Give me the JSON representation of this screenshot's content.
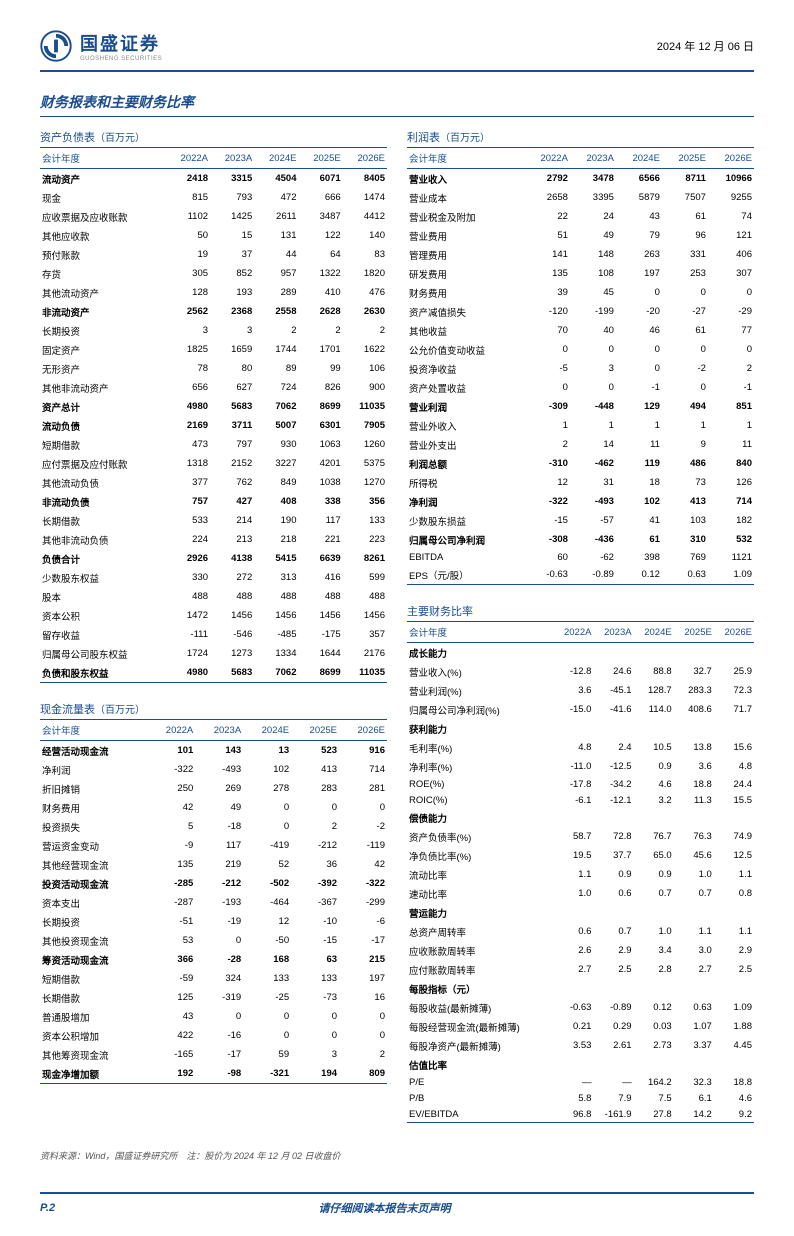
{
  "header": {
    "company_cn": "国盛证券",
    "company_en": "GUOSHENG SECURITIES",
    "date": "2024 年 12 月 06 日",
    "logo_color": "#1a4d8f"
  },
  "section_title": "财务报表和主要财务比率",
  "years": [
    "2022A",
    "2023A",
    "2024E",
    "2025E",
    "2026E"
  ],
  "year_label": "会计年度",
  "balance": {
    "title": "资产负债表",
    "unit": "（百万元）",
    "rows": [
      {
        "label": "流动资产",
        "bold": true,
        "v": [
          "2418",
          "3315",
          "4504",
          "6071",
          "8405"
        ]
      },
      {
        "label": "现金",
        "v": [
          "815",
          "793",
          "472",
          "666",
          "1474"
        ]
      },
      {
        "label": "应收票据及应收账款",
        "v": [
          "1102",
          "1425",
          "2611",
          "3487",
          "4412"
        ]
      },
      {
        "label": "其他应收款",
        "v": [
          "50",
          "15",
          "131",
          "122",
          "140"
        ]
      },
      {
        "label": "预付账款",
        "v": [
          "19",
          "37",
          "44",
          "64",
          "83"
        ]
      },
      {
        "label": "存货",
        "v": [
          "305",
          "852",
          "957",
          "1322",
          "1820"
        ]
      },
      {
        "label": "其他流动资产",
        "v": [
          "128",
          "193",
          "289",
          "410",
          "476"
        ]
      },
      {
        "label": "非流动资产",
        "bold": true,
        "v": [
          "2562",
          "2368",
          "2558",
          "2628",
          "2630"
        ]
      },
      {
        "label": "长期投资",
        "v": [
          "3",
          "3",
          "2",
          "2",
          "2"
        ]
      },
      {
        "label": "固定资产",
        "v": [
          "1825",
          "1659",
          "1744",
          "1701",
          "1622"
        ]
      },
      {
        "label": "无形资产",
        "v": [
          "78",
          "80",
          "89",
          "99",
          "106"
        ]
      },
      {
        "label": "其他非流动资产",
        "v": [
          "656",
          "627",
          "724",
          "826",
          "900"
        ]
      },
      {
        "label": "资产总计",
        "bold": true,
        "v": [
          "4980",
          "5683",
          "7062",
          "8699",
          "11035"
        ]
      },
      {
        "label": "流动负债",
        "bold": true,
        "v": [
          "2169",
          "3711",
          "5007",
          "6301",
          "7905"
        ]
      },
      {
        "label": "短期借款",
        "v": [
          "473",
          "797",
          "930",
          "1063",
          "1260"
        ]
      },
      {
        "label": "应付票据及应付账款",
        "v": [
          "1318",
          "2152",
          "3227",
          "4201",
          "5375"
        ]
      },
      {
        "label": "其他流动负债",
        "v": [
          "377",
          "762",
          "849",
          "1038",
          "1270"
        ]
      },
      {
        "label": "非流动负债",
        "bold": true,
        "v": [
          "757",
          "427",
          "408",
          "338",
          "356"
        ]
      },
      {
        "label": "长期借款",
        "v": [
          "533",
          "214",
          "190",
          "117",
          "133"
        ]
      },
      {
        "label": "其他非流动负债",
        "v": [
          "224",
          "213",
          "218",
          "221",
          "223"
        ]
      },
      {
        "label": "负债合计",
        "bold": true,
        "v": [
          "2926",
          "4138",
          "5415",
          "6639",
          "8261"
        ]
      },
      {
        "label": "少数股东权益",
        "v": [
          "330",
          "272",
          "313",
          "416",
          "599"
        ]
      },
      {
        "label": "股本",
        "v": [
          "488",
          "488",
          "488",
          "488",
          "488"
        ]
      },
      {
        "label": "资本公积",
        "v": [
          "1472",
          "1456",
          "1456",
          "1456",
          "1456"
        ]
      },
      {
        "label": "留存收益",
        "v": [
          "-111",
          "-546",
          "-485",
          "-175",
          "357"
        ]
      },
      {
        "label": "归属母公司股东权益",
        "v": [
          "1724",
          "1273",
          "1334",
          "1644",
          "2176"
        ]
      },
      {
        "label": "负债和股东权益",
        "bold": true,
        "v": [
          "4980",
          "5683",
          "7062",
          "8699",
          "11035"
        ]
      }
    ]
  },
  "cashflow": {
    "title": "现金流量表",
    "unit": "（百万元）",
    "rows": [
      {
        "label": "经营活动现金流",
        "bold": true,
        "v": [
          "101",
          "143",
          "13",
          "523",
          "916"
        ]
      },
      {
        "label": "净利润",
        "v": [
          "-322",
          "-493",
          "102",
          "413",
          "714"
        ]
      },
      {
        "label": "折旧摊销",
        "v": [
          "250",
          "269",
          "278",
          "283",
          "281"
        ]
      },
      {
        "label": "财务费用",
        "v": [
          "42",
          "49",
          "0",
          "0",
          "0"
        ]
      },
      {
        "label": "投资损失",
        "v": [
          "5",
          "-18",
          "0",
          "2",
          "-2"
        ]
      },
      {
        "label": "营运资金变动",
        "v": [
          "-9",
          "117",
          "-419",
          "-212",
          "-119"
        ]
      },
      {
        "label": "其他经营现金流",
        "v": [
          "135",
          "219",
          "52",
          "36",
          "42"
        ]
      },
      {
        "label": "投资活动现金流",
        "bold": true,
        "v": [
          "-285",
          "-212",
          "-502",
          "-392",
          "-322"
        ]
      },
      {
        "label": "资本支出",
        "v": [
          "-287",
          "-193",
          "-464",
          "-367",
          "-299"
        ]
      },
      {
        "label": "长期投资",
        "v": [
          "-51",
          "-19",
          "12",
          "-10",
          "-6"
        ]
      },
      {
        "label": "其他投资现金流",
        "v": [
          "53",
          "0",
          "-50",
          "-15",
          "-17"
        ]
      },
      {
        "label": "筹资活动现金流",
        "bold": true,
        "v": [
          "366",
          "-28",
          "168",
          "63",
          "215"
        ]
      },
      {
        "label": "短期借款",
        "v": [
          "-59",
          "324",
          "133",
          "133",
          "197"
        ]
      },
      {
        "label": "长期借款",
        "v": [
          "125",
          "-319",
          "-25",
          "-73",
          "16"
        ]
      },
      {
        "label": "普通股增加",
        "v": [
          "43",
          "0",
          "0",
          "0",
          "0"
        ]
      },
      {
        "label": "资本公积增加",
        "v": [
          "422",
          "-16",
          "0",
          "0",
          "0"
        ]
      },
      {
        "label": "其他筹资现金流",
        "v": [
          "-165",
          "-17",
          "59",
          "3",
          "2"
        ]
      },
      {
        "label": "现金净增加额",
        "bold": true,
        "v": [
          "192",
          "-98",
          "-321",
          "194",
          "809"
        ]
      }
    ]
  },
  "income": {
    "title": "利润表",
    "unit": "（百万元）",
    "rows": [
      {
        "label": "营业收入",
        "bold": true,
        "v": [
          "2792",
          "3478",
          "6566",
          "8711",
          "10966"
        ]
      },
      {
        "label": "营业成本",
        "v": [
          "2658",
          "3395",
          "5879",
          "7507",
          "9255"
        ]
      },
      {
        "label": "营业税金及附加",
        "v": [
          "22",
          "24",
          "43",
          "61",
          "74"
        ]
      },
      {
        "label": "营业费用",
        "v": [
          "51",
          "49",
          "79",
          "96",
          "121"
        ]
      },
      {
        "label": "管理费用",
        "v": [
          "141",
          "148",
          "263",
          "331",
          "406"
        ]
      },
      {
        "label": "研发费用",
        "v": [
          "135",
          "108",
          "197",
          "253",
          "307"
        ]
      },
      {
        "label": "财务费用",
        "v": [
          "39",
          "45",
          "0",
          "0",
          "0"
        ]
      },
      {
        "label": "资产减值损失",
        "v": [
          "-120",
          "-199",
          "-20",
          "-27",
          "-29"
        ]
      },
      {
        "label": "其他收益",
        "v": [
          "70",
          "40",
          "46",
          "61",
          "77"
        ]
      },
      {
        "label": "公允价值变动收益",
        "v": [
          "0",
          "0",
          "0",
          "0",
          "0"
        ]
      },
      {
        "label": "投资净收益",
        "v": [
          "-5",
          "3",
          "0",
          "-2",
          "2"
        ]
      },
      {
        "label": "资产处置收益",
        "v": [
          "0",
          "0",
          "-1",
          "0",
          "-1"
        ]
      },
      {
        "label": "营业利润",
        "bold": true,
        "v": [
          "-309",
          "-448",
          "129",
          "494",
          "851"
        ]
      },
      {
        "label": "营业外收入",
        "v": [
          "1",
          "1",
          "1",
          "1",
          "1"
        ]
      },
      {
        "label": "营业外支出",
        "v": [
          "2",
          "14",
          "11",
          "9",
          "11"
        ]
      },
      {
        "label": "利润总额",
        "bold": true,
        "v": [
          "-310",
          "-462",
          "119",
          "486",
          "840"
        ]
      },
      {
        "label": "所得税",
        "v": [
          "12",
          "31",
          "18",
          "73",
          "126"
        ]
      },
      {
        "label": "净利润",
        "bold": true,
        "v": [
          "-322",
          "-493",
          "102",
          "413",
          "714"
        ]
      },
      {
        "label": "少数股东损益",
        "v": [
          "-15",
          "-57",
          "41",
          "103",
          "182"
        ]
      },
      {
        "label": "归属母公司净利润",
        "bold": true,
        "v": [
          "-308",
          "-436",
          "61",
          "310",
          "532"
        ]
      },
      {
        "label": "EBITDA",
        "v": [
          "60",
          "-62",
          "398",
          "769",
          "1121"
        ]
      },
      {
        "label": "EPS（元/股）",
        "v": [
          "-0.63",
          "-0.89",
          "0.12",
          "0.63",
          "1.09"
        ]
      }
    ]
  },
  "ratios": {
    "title": "主要财务比率",
    "rows": [
      {
        "label": "成长能力",
        "bold": true,
        "v": [
          "",
          "",
          "",
          "",
          ""
        ]
      },
      {
        "label": "营业收入(%)",
        "v": [
          "-12.8",
          "24.6",
          "88.8",
          "32.7",
          "25.9"
        ]
      },
      {
        "label": "营业利润(%)",
        "v": [
          "3.6",
          "-45.1",
          "128.7",
          "283.3",
          "72.3"
        ]
      },
      {
        "label": "归属母公司净利润(%)",
        "v": [
          "-15.0",
          "-41.6",
          "114.0",
          "408.6",
          "71.7"
        ]
      },
      {
        "label": "获利能力",
        "bold": true,
        "v": [
          "",
          "",
          "",
          "",
          ""
        ]
      },
      {
        "label": "毛利率(%)",
        "v": [
          "4.8",
          "2.4",
          "10.5",
          "13.8",
          "15.6"
        ]
      },
      {
        "label": "净利率(%)",
        "v": [
          "-11.0",
          "-12.5",
          "0.9",
          "3.6",
          "4.8"
        ]
      },
      {
        "label": "ROE(%)",
        "v": [
          "-17.8",
          "-34.2",
          "4.6",
          "18.8",
          "24.4"
        ]
      },
      {
        "label": "ROIC(%)",
        "v": [
          "-6.1",
          "-12.1",
          "3.2",
          "11.3",
          "15.5"
        ]
      },
      {
        "label": "偿债能力",
        "bold": true,
        "v": [
          "",
          "",
          "",
          "",
          ""
        ]
      },
      {
        "label": "资产负债率(%)",
        "v": [
          "58.7",
          "72.8",
          "76.7",
          "76.3",
          "74.9"
        ]
      },
      {
        "label": "净负债比率(%)",
        "v": [
          "19.5",
          "37.7",
          "65.0",
          "45.6",
          "12.5"
        ]
      },
      {
        "label": "流动比率",
        "v": [
          "1.1",
          "0.9",
          "0.9",
          "1.0",
          "1.1"
        ]
      },
      {
        "label": "速动比率",
        "v": [
          "1.0",
          "0.6",
          "0.7",
          "0.7",
          "0.8"
        ]
      },
      {
        "label": "营运能力",
        "bold": true,
        "v": [
          "",
          "",
          "",
          "",
          ""
        ]
      },
      {
        "label": "总资产周转率",
        "v": [
          "0.6",
          "0.7",
          "1.0",
          "1.1",
          "1.1"
        ]
      },
      {
        "label": "应收账款周转率",
        "v": [
          "2.6",
          "2.9",
          "3.4",
          "3.0",
          "2.9"
        ]
      },
      {
        "label": "应付账款周转率",
        "v": [
          "2.7",
          "2.5",
          "2.8",
          "2.7",
          "2.5"
        ]
      },
      {
        "label": "每股指标（元）",
        "bold": true,
        "v": [
          "",
          "",
          "",
          "",
          ""
        ]
      },
      {
        "label": "每股收益(最新摊薄)",
        "v": [
          "-0.63",
          "-0.89",
          "0.12",
          "0.63",
          "1.09"
        ]
      },
      {
        "label": "每股经营现金流(最新摊薄)",
        "v": [
          "0.21",
          "0.29",
          "0.03",
          "1.07",
          "1.88"
        ]
      },
      {
        "label": "每股净资产(最新摊薄)",
        "v": [
          "3.53",
          "2.61",
          "2.73",
          "3.37",
          "4.45"
        ]
      },
      {
        "label": "估值比率",
        "bold": true,
        "v": [
          "",
          "",
          "",
          "",
          ""
        ]
      },
      {
        "label": "P/E",
        "v": [
          "—",
          "—",
          "164.2",
          "32.3",
          "18.8"
        ]
      },
      {
        "label": "P/B",
        "v": [
          "5.8",
          "7.9",
          "7.5",
          "6.1",
          "4.6"
        ]
      },
      {
        "label": "EV/EBITDA",
        "v": [
          "96.8",
          "-161.9",
          "27.8",
          "14.2",
          "9.2"
        ]
      }
    ]
  },
  "source": "资料来源：Wind，国盛证券研究所　注：股价为 2024 年 12 月 02 日收盘价",
  "footer": {
    "page": "P.2",
    "note": "请仔细阅读本报告末页声明"
  }
}
